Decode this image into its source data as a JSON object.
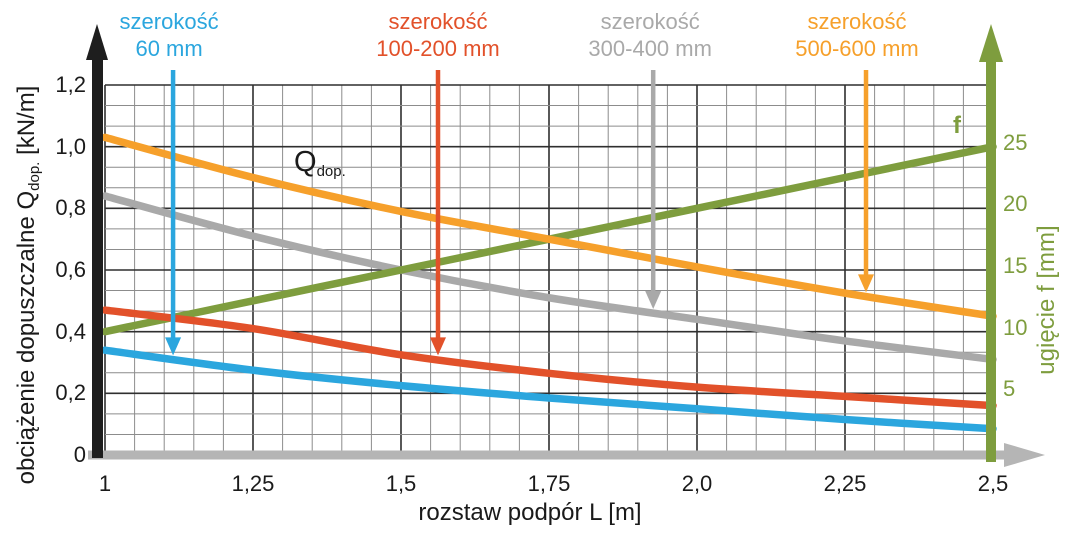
{
  "chart_data": {
    "type": "line",
    "x": [
      1,
      1.25,
      1.5,
      1.75,
      2.0,
      2.25,
      2.5
    ],
    "x_tick_labels": [
      "1",
      "1,25",
      "1,5",
      "1,75",
      "2,0",
      "2,25",
      "2,5"
    ],
    "xlabel": "rozstaw podpór L [m]",
    "xlim": [
      1,
      2.5
    ],
    "grid": "on",
    "left_axis": {
      "label_prefix": "obciążenie dopuszczalne Q",
      "label_sub": "dop.",
      "label_suffix": " [kN/m]",
      "tick_values": [
        1.2,
        1.0,
        0.8,
        0.6,
        0.4,
        0.2,
        0
      ],
      "tick_labels": [
        "1,2",
        "1,0",
        "0,8",
        "0,6",
        "0,4",
        "0,2",
        "0"
      ],
      "range": [
        0,
        1.2
      ],
      "color": "#1a1a1a"
    },
    "right_axis": {
      "label": "ugięcie f [mm]",
      "tick_values": [
        25,
        20,
        15,
        10,
        5
      ],
      "tick_labels": [
        "25",
        "20",
        "15",
        "10",
        "5"
      ],
      "range": [
        0,
        30
      ],
      "color": "#7e9d3e"
    },
    "series": [
      {
        "name": "szerokość 60 mm",
        "axis": "left",
        "color": "#2ba6de",
        "values": [
          0.34,
          0.275,
          0.225,
          0.185,
          0.15,
          0.115,
          0.085
        ]
      },
      {
        "name": "szerokość 100-200 mm",
        "axis": "left",
        "color": "#e2512a",
        "values": [
          0.47,
          0.41,
          0.325,
          0.265,
          0.22,
          0.19,
          0.16
        ]
      },
      {
        "name": "szerokość 300-400 mm",
        "axis": "left",
        "color": "#a9a9a9",
        "values": [
          0.84,
          0.71,
          0.6,
          0.51,
          0.44,
          0.37,
          0.31
        ]
      },
      {
        "name": "szerokość 500-600 mm",
        "axis": "left",
        "color": "#f6a02b",
        "values": [
          1.03,
          0.9,
          0.79,
          0.7,
          0.61,
          0.525,
          0.45
        ]
      },
      {
        "name": "f (ugięcie)",
        "axis": "right",
        "color": "#7e9d3e",
        "values": [
          10,
          12.5,
          15,
          17.5,
          20,
          22.5,
          25
        ]
      }
    ],
    "curve_labels": [
      {
        "line1": "szerokość",
        "line2": "60 mm",
        "series": 0,
        "arrow_L": 1.115
      },
      {
        "line1": "szerokość",
        "line2": "100-200 mm",
        "series": 1,
        "arrow_L": 1.5625
      },
      {
        "line1": "szerokość",
        "line2": "300-400 mm",
        "series": 2,
        "arrow_L": 1.926
      },
      {
        "line1": "szerokość",
        "line2": "500-600 mm",
        "series": 3,
        "arrow_L": 2.2855
      }
    ],
    "inline_labels": {
      "q_main": "Q",
      "q_sub": "dop.",
      "f": "f"
    },
    "colors": {
      "grid_minor": "#8c8c8c",
      "grid_major": "#2f2f2f",
      "left_axis_arrow": "#1e1e1e",
      "right_axis_arrow": "#7e9d3e",
      "baseline_arrow": "#b5b5b5"
    }
  }
}
